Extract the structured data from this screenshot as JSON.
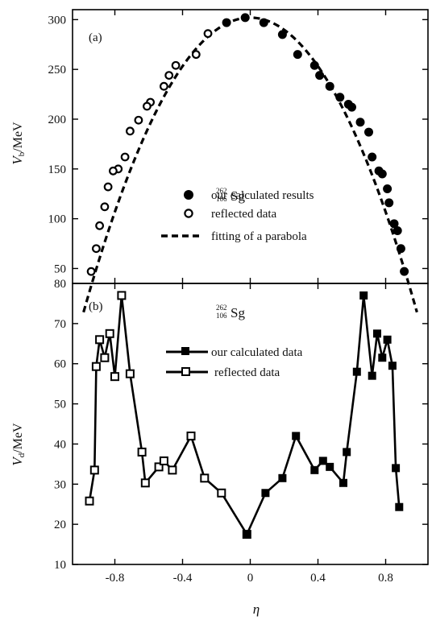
{
  "chart_data": [
    {
      "type": "scatter",
      "panel_label": "(a)",
      "nucleus": {
        "mass": "262",
        "charge": "106",
        "symbol": "Sg"
      },
      "ylabel": {
        "symbol": "V",
        "subscript": "b",
        "unit": "/MeV"
      },
      "xlim": [
        -1.05,
        1.05
      ],
      "ylim": [
        35,
        310
      ],
      "yticks": [
        50,
        100,
        150,
        200,
        250,
        300
      ],
      "series": [
        {
          "name": "our calculated results",
          "marker": "filled-circle",
          "points": [
            {
              "x": -0.14,
              "y": 297
            },
            {
              "x": -0.03,
              "y": 302
            },
            {
              "x": 0.08,
              "y": 297
            },
            {
              "x": 0.19,
              "y": 285
            },
            {
              "x": 0.28,
              "y": 265
            },
            {
              "x": 0.38,
              "y": 254
            },
            {
              "x": 0.41,
              "y": 244
            },
            {
              "x": 0.47,
              "y": 233
            },
            {
              "x": 0.53,
              "y": 222
            },
            {
              "x": 0.58,
              "y": 215
            },
            {
              "x": 0.6,
              "y": 212
            },
            {
              "x": 0.65,
              "y": 197
            },
            {
              "x": 0.7,
              "y": 187
            },
            {
              "x": 0.72,
              "y": 162
            },
            {
              "x": 0.76,
              "y": 148
            },
            {
              "x": 0.78,
              "y": 145
            },
            {
              "x": 0.81,
              "y": 130
            },
            {
              "x": 0.82,
              "y": 116
            },
            {
              "x": 0.85,
              "y": 95
            },
            {
              "x": 0.87,
              "y": 88
            },
            {
              "x": 0.89,
              "y": 70
            },
            {
              "x": 0.91,
              "y": 47
            }
          ]
        },
        {
          "name": "reflected data",
          "marker": "open-circle",
          "points": [
            {
              "x": -0.25,
              "y": 286
            },
            {
              "x": -0.32,
              "y": 265
            },
            {
              "x": -0.44,
              "y": 254
            },
            {
              "x": -0.48,
              "y": 244
            },
            {
              "x": -0.51,
              "y": 233
            },
            {
              "x": -0.59,
              "y": 217
            },
            {
              "x": -0.61,
              "y": 213
            },
            {
              "x": -0.66,
              "y": 199
            },
            {
              "x": -0.71,
              "y": 188
            },
            {
              "x": -0.74,
              "y": 162
            },
            {
              "x": -0.78,
              "y": 150
            },
            {
              "x": -0.81,
              "y": 148
            },
            {
              "x": -0.84,
              "y": 132
            },
            {
              "x": -0.86,
              "y": 112
            },
            {
              "x": -0.89,
              "y": 93
            },
            {
              "x": -0.91,
              "y": 70
            },
            {
              "x": -0.94,
              "y": 47
            }
          ]
        },
        {
          "name": "fitting of a parabola",
          "style": "dashed",
          "curve": {
            "a": 302,
            "b": -305,
            "xmin": -0.985,
            "xmax": 0.985
          }
        }
      ]
    },
    {
      "type": "line",
      "panel_label": "(b)",
      "nucleus": {
        "mass": "262",
        "charge": "106",
        "symbol": "Sg"
      },
      "xlabel": "η",
      "ylabel": {
        "symbol": "V",
        "subscript": "d",
        "unit": "/MeV"
      },
      "xlim": [
        -1.05,
        1.05
      ],
      "ylim": [
        10,
        80
      ],
      "xticks": [
        -0.8,
        -0.4,
        0,
        0.4,
        0.8
      ],
      "xticklabels": [
        "-0.8",
        "-0.4",
        "0",
        "0.4",
        "0.8"
      ],
      "yticks": [
        10,
        20,
        30,
        40,
        50,
        60,
        70,
        80
      ],
      "series": [
        {
          "name": "our calculated data",
          "marker": "filled-square",
          "points": [
            {
              "x": -0.02,
              "y": 17.5
            },
            {
              "x": 0.09,
              "y": 27.8
            },
            {
              "x": 0.19,
              "y": 31.5
            },
            {
              "x": 0.27,
              "y": 42
            },
            {
              "x": 0.38,
              "y": 33.5
            },
            {
              "x": 0.43,
              "y": 35.8
            },
            {
              "x": 0.47,
              "y": 34.3
            },
            {
              "x": 0.55,
              "y": 30.3
            },
            {
              "x": 0.57,
              "y": 38
            },
            {
              "x": 0.63,
              "y": 58
            },
            {
              "x": 0.67,
              "y": 77
            },
            {
              "x": 0.72,
              "y": 57
            },
            {
              "x": 0.75,
              "y": 67.5
            },
            {
              "x": 0.78,
              "y": 61.5
            },
            {
              "x": 0.81,
              "y": 66
            },
            {
              "x": 0.84,
              "y": 59.5
            },
            {
              "x": 0.86,
              "y": 34
            },
            {
              "x": 0.88,
              "y": 24.3
            }
          ]
        },
        {
          "name": "reflected data",
          "marker": "open-square",
          "points": [
            {
              "x": -0.95,
              "y": 25.8
            },
            {
              "x": -0.92,
              "y": 33.5
            },
            {
              "x": -0.91,
              "y": 59.3
            },
            {
              "x": -0.89,
              "y": 66
            },
            {
              "x": -0.86,
              "y": 61.5
            },
            {
              "x": -0.83,
              "y": 67.5
            },
            {
              "x": -0.8,
              "y": 56.8
            },
            {
              "x": -0.76,
              "y": 77
            },
            {
              "x": -0.71,
              "y": 57.5
            },
            {
              "x": -0.64,
              "y": 38
            },
            {
              "x": -0.62,
              "y": 30.3
            },
            {
              "x": -0.54,
              "y": 34.3
            },
            {
              "x": -0.51,
              "y": 35.8
            },
            {
              "x": -0.46,
              "y": 33.5
            },
            {
              "x": -0.35,
              "y": 42
            },
            {
              "x": -0.27,
              "y": 31.5
            },
            {
              "x": -0.17,
              "y": 27.8
            },
            {
              "x": -0.02,
              "y": 17.5
            }
          ]
        }
      ]
    }
  ]
}
